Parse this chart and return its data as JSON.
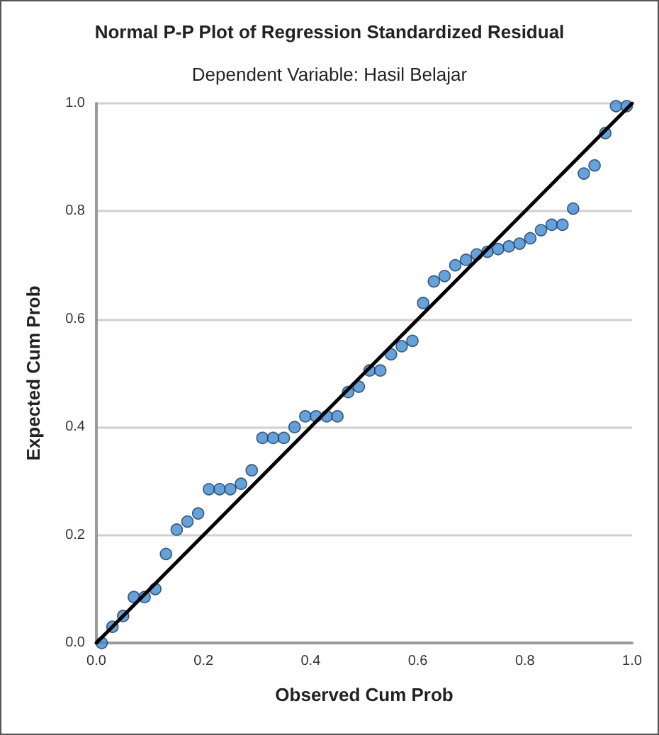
{
  "chart_data": {
    "type": "scatter",
    "title": "Normal P-P Plot of Regression Standardized Residual",
    "subtitle": "Dependent Variable: Hasil Belajar",
    "xlabel": "Observed Cum Prob",
    "ylabel": "Expected Cum Prob",
    "xlim": [
      0,
      1
    ],
    "ylim": [
      0,
      1
    ],
    "xticks": [
      {
        "value": 0,
        "label": "0.0"
      },
      {
        "value": 0.2,
        "label": "0.2"
      },
      {
        "value": 0.4,
        "label": "0.4"
      },
      {
        "value": 0.6,
        "label": "0.6"
      },
      {
        "value": 0.8,
        "label": "0.8"
      },
      {
        "value": 1,
        "label": "1.0"
      }
    ],
    "yticks": [
      {
        "value": 0,
        "label": "0.0"
      },
      {
        "value": 0.2,
        "label": "0.2"
      },
      {
        "value": 0.4,
        "label": "0.4"
      },
      {
        "value": 0.6,
        "label": "0.6"
      },
      {
        "value": 0.8,
        "label": "0.8"
      },
      {
        "value": 1,
        "label": "1.0"
      }
    ],
    "grid": "y",
    "marker": "circle",
    "series": [
      {
        "color": "#3d8bd4",
        "x": [
          0.01,
          0.03,
          0.05,
          0.07,
          0.09,
          0.11,
          0.13,
          0.15,
          0.17,
          0.19,
          0.21,
          0.23,
          0.25,
          0.27,
          0.29,
          0.31,
          0.33,
          0.35,
          0.37,
          0.39,
          0.41,
          0.43,
          0.45,
          0.47,
          0.49,
          0.51,
          0.53,
          0.55,
          0.57,
          0.59,
          0.61,
          0.63,
          0.65,
          0.67,
          0.69,
          0.71,
          0.73,
          0.75,
          0.77,
          0.79,
          0.81,
          0.83,
          0.85,
          0.87,
          0.89,
          0.91,
          0.93,
          0.95,
          0.97,
          0.99
        ],
        "values": [
          0.0,
          0.03,
          0.05,
          0.085,
          0.085,
          0.1,
          0.165,
          0.21,
          0.225,
          0.24,
          0.285,
          0.285,
          0.285,
          0.295,
          0.32,
          0.38,
          0.38,
          0.38,
          0.4,
          0.42,
          0.42,
          0.42,
          0.42,
          0.465,
          0.475,
          0.505,
          0.505,
          0.535,
          0.55,
          0.56,
          0.63,
          0.67,
          0.68,
          0.7,
          0.71,
          0.72,
          0.725,
          0.73,
          0.735,
          0.74,
          0.75,
          0.765,
          0.775,
          0.775,
          0.805,
          0.87,
          0.885,
          0.945,
          0.995,
          0.995
        ]
      },
      {
        "type": "line",
        "color": "#000000",
        "x": [
          0,
          1
        ],
        "values": [
          0,
          1
        ],
        "marker": "none"
      }
    ]
  }
}
